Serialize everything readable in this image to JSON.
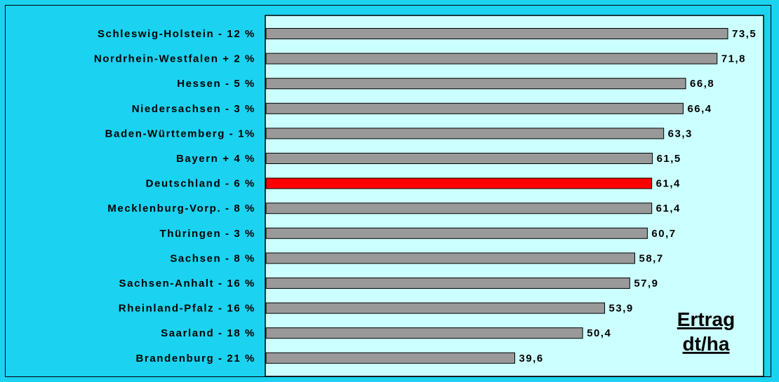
{
  "chart_data": {
    "type": "bar",
    "orientation": "horizontal",
    "categories": [
      "Schleswig-Holstein - 12 %",
      "Nordrhein-Westfalen + 2 %",
      "Hessen - 5 %",
      "Niedersachsen - 3 %",
      "Baden-Württemberg - 1%",
      "Bayern + 4 %",
      "Deutschland - 6 %",
      "Mecklenburg-Vorp. - 8 %",
      "Thüringen - 3 %",
      "Sachsen - 8 %",
      "Sachsen-Anhalt - 16 %",
      "Rheinland-Pfalz - 16 %",
      "Saarland - 18 %",
      "Brandenburg - 21 %"
    ],
    "values": [
      73.5,
      71.8,
      66.8,
      66.4,
      63.3,
      61.5,
      61.4,
      61.4,
      60.7,
      58.7,
      57.9,
      53.9,
      50.4,
      39.6
    ],
    "value_labels": [
      "73,5",
      "71,8",
      "66,8",
      "66,4",
      "63,3",
      "61,5",
      "61,4",
      "61,4",
      "60,7",
      "58,7",
      "57,9",
      "53,9",
      "50,4",
      "39,6"
    ],
    "highlight_index": 6,
    "colors": {
      "bar": "#999999",
      "highlight": "#FF0000",
      "plot_background": "#CCFFFF",
      "page_background": "#1BD2F0"
    },
    "unit_label_line1": "Ertrag",
    "unit_label_line2": "dt/ha",
    "xlim": [
      0,
      75
    ],
    "grid": false,
    "legend": "none"
  }
}
